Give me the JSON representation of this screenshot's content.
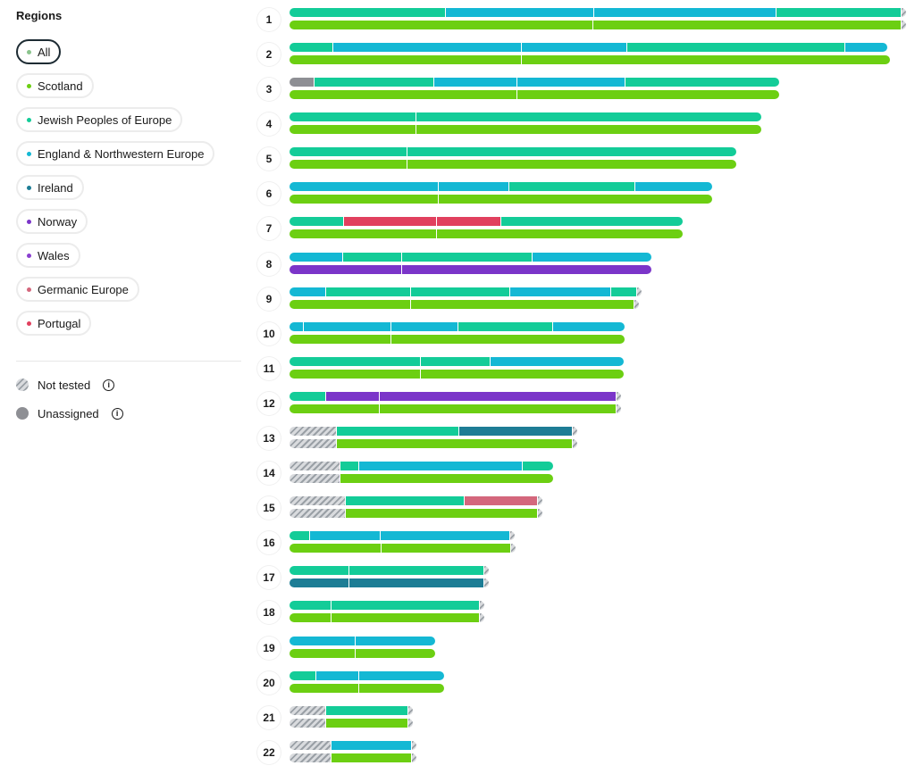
{
  "sidebar": {
    "title": "Regions",
    "filters": [
      {
        "label": "All",
        "color": "#8bc48d",
        "selected": true
      },
      {
        "label": "Scotland",
        "color": "#6ccf12"
      },
      {
        "label": "Jewish Peoples of Europe",
        "color": "#13cc98"
      },
      {
        "label": "England & Northwestern Europe",
        "color": "#14b8d4"
      },
      {
        "label": "Ireland",
        "color": "#1d7d95"
      },
      {
        "label": "Norway",
        "color": "#7b35c9"
      },
      {
        "label": "Wales",
        "color": "#8a3fd0"
      },
      {
        "label": "Germanic Europe",
        "color": "#d4677c"
      },
      {
        "label": "Portugal",
        "color": "#e1405e"
      }
    ],
    "legend": [
      {
        "label": "Not tested",
        "icon": "hatched-swatch-icon"
      },
      {
        "label": "Unassigned",
        "icon": "gray-swatch-icon"
      }
    ]
  },
  "colors": {
    "scotland": "#6ccf12",
    "jewish": "#13cc98",
    "england": "#14b8d4",
    "ireland": "#1d7d95",
    "norway": "#7b35c9",
    "portugal": "#e1405e",
    "germanic": "#d4677c",
    "unassigned": "#8e8f94",
    "hatched": "#b8bcc1"
  },
  "chart_data": {
    "type": "bar",
    "chromosomes": [
      "1",
      "2",
      "3",
      "4",
      "5",
      "6",
      "7",
      "8",
      "9",
      "10",
      "11",
      "12",
      "13",
      "14",
      "15",
      "16",
      "17",
      "18",
      "19",
      "20",
      "21",
      "22"
    ]
  }
}
